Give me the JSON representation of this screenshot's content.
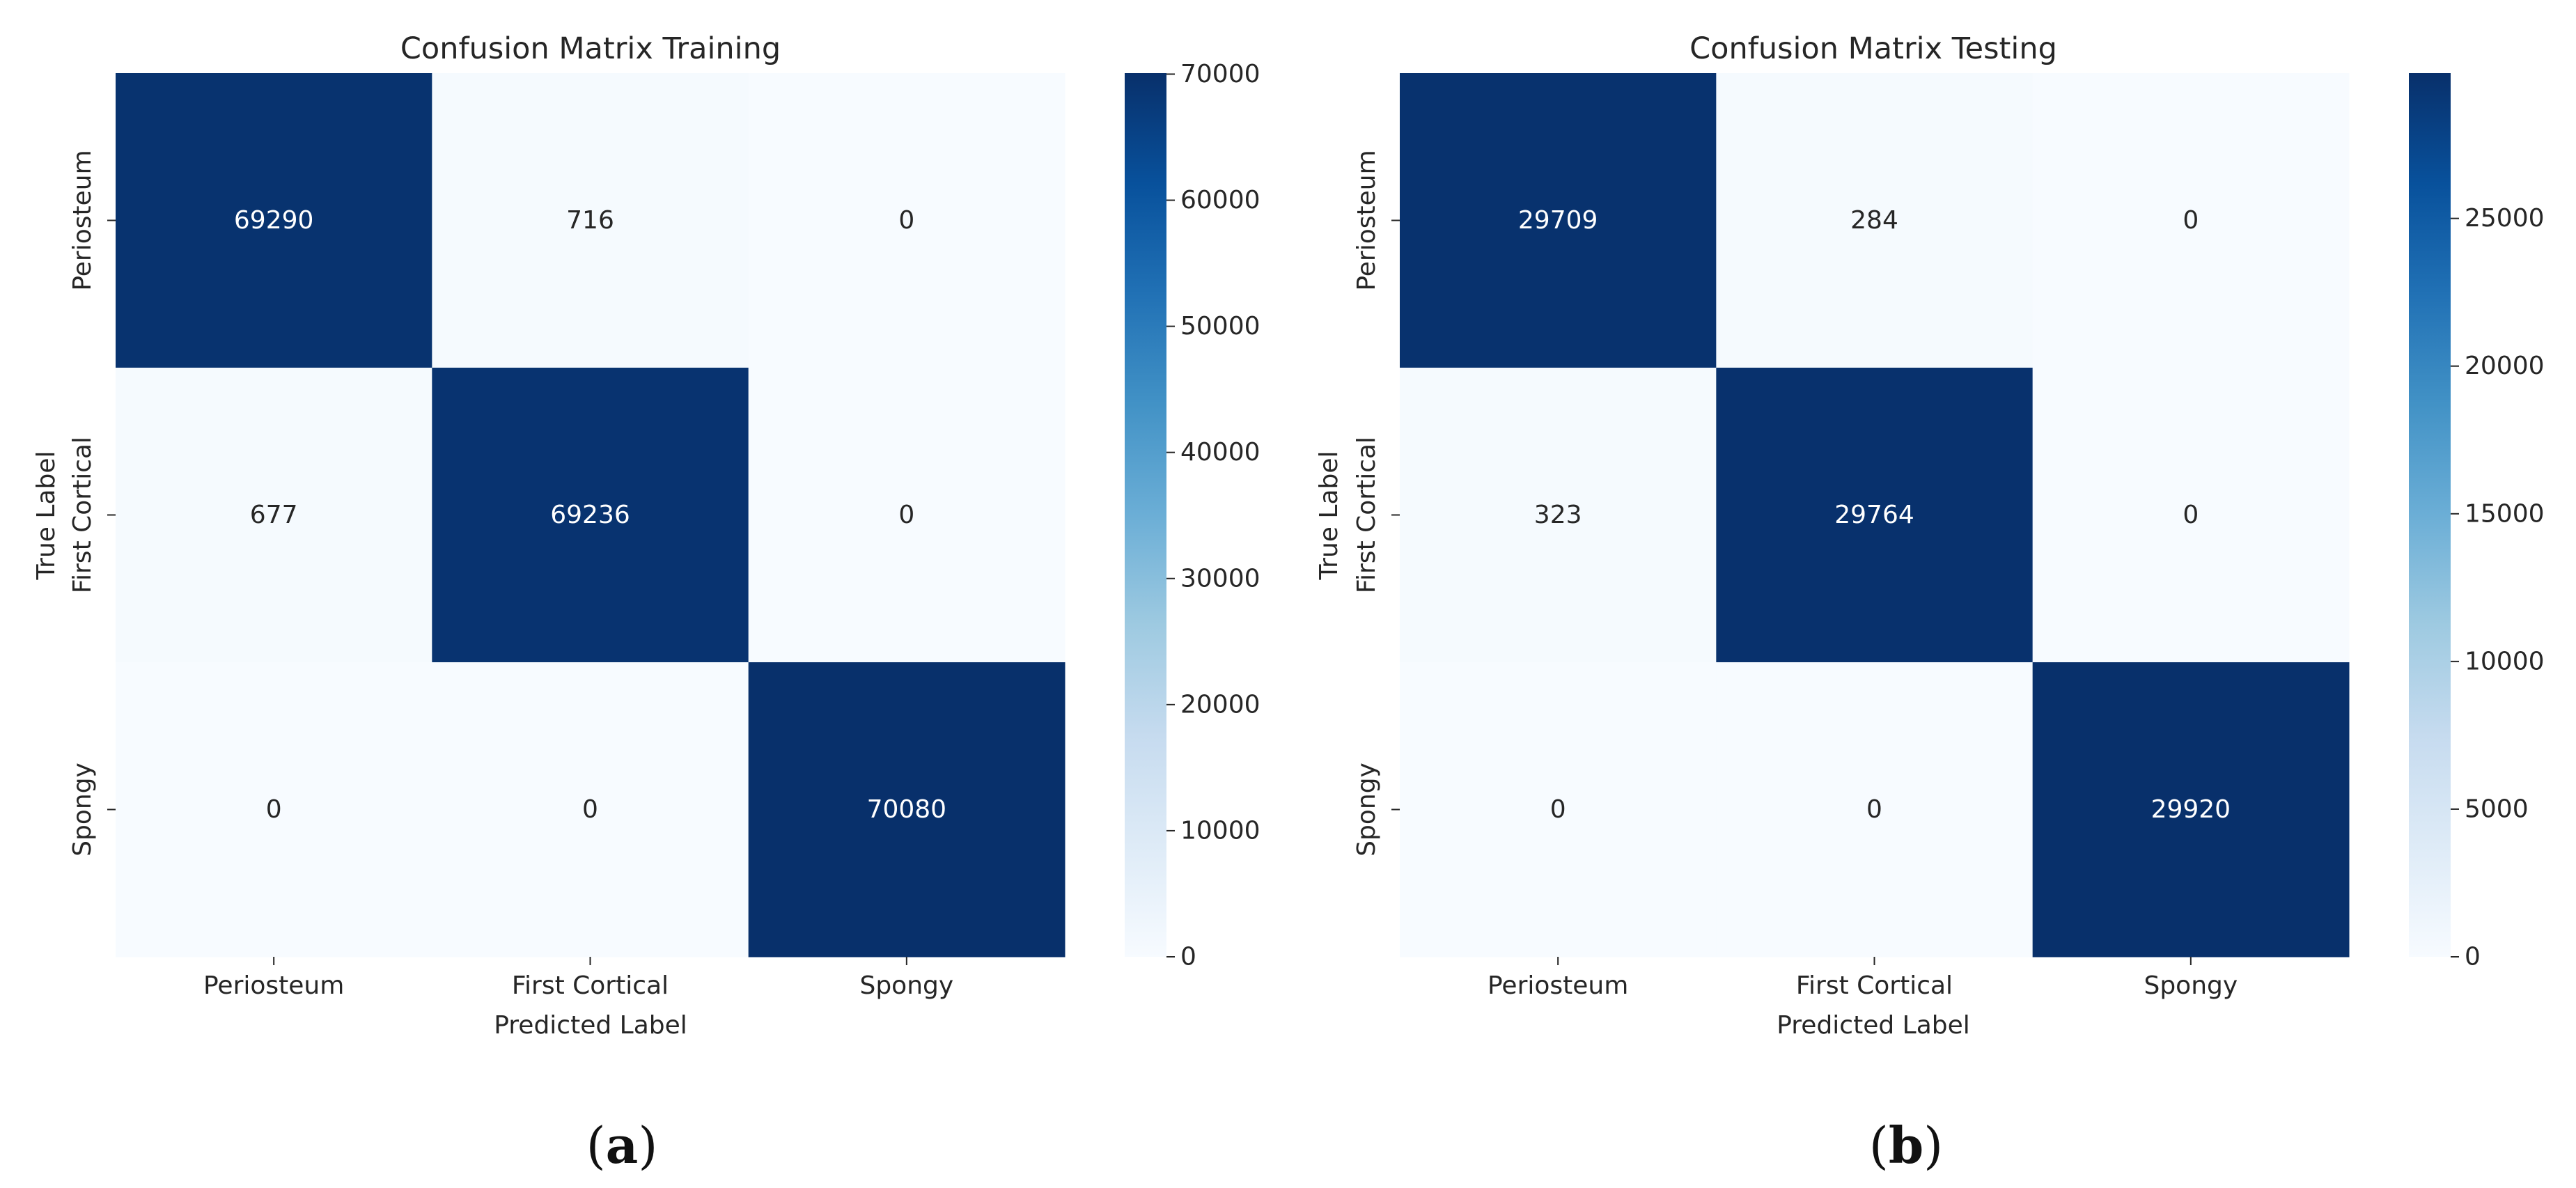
{
  "colormap": {
    "name": "Blues",
    "stops": [
      "#f7fbff",
      "#deebf7",
      "#c6dbef",
      "#9ecae1",
      "#6baed6",
      "#4292c6",
      "#2171b5",
      "#08519c",
      "#08306b"
    ],
    "text_light": "#ffffff",
    "text_dark": "#262626"
  },
  "chart_data": [
    {
      "type": "heatmap",
      "title": "Confusion Matrix Training",
      "xlabel": "Predicted Label",
      "ylabel": "True Label",
      "x_categories": [
        "Periosteum",
        "First Cortical",
        "Spongy"
      ],
      "y_categories": [
        "Periosteum",
        "First Cortical",
        "Spongy"
      ],
      "values": [
        [
          69290,
          716,
          0
        ],
        [
          677,
          69236,
          0
        ],
        [
          0,
          0,
          70080
        ]
      ],
      "colorbar": {
        "vmin": 0,
        "vmax": 70080,
        "ticks": [
          0,
          10000,
          20000,
          30000,
          40000,
          50000,
          60000,
          70000
        ]
      },
      "caption": {
        "open": "(",
        "letter": "a",
        "close": ")"
      }
    },
    {
      "type": "heatmap",
      "title": "Confusion Matrix Testing",
      "xlabel": "Predicted Label",
      "ylabel": "True Label",
      "x_categories": [
        "Periosteum",
        "First Cortical",
        "Spongy"
      ],
      "y_categories": [
        "Periosteum",
        "First Cortical",
        "Spongy"
      ],
      "values": [
        [
          29709,
          284,
          0
        ],
        [
          323,
          29764,
          0
        ],
        [
          0,
          0,
          29920
        ]
      ],
      "colorbar": {
        "vmin": 0,
        "vmax": 29920,
        "ticks": [
          0,
          5000,
          10000,
          15000,
          20000,
          25000
        ]
      },
      "caption": {
        "open": "(",
        "letter": "b",
        "close": ")"
      }
    }
  ]
}
